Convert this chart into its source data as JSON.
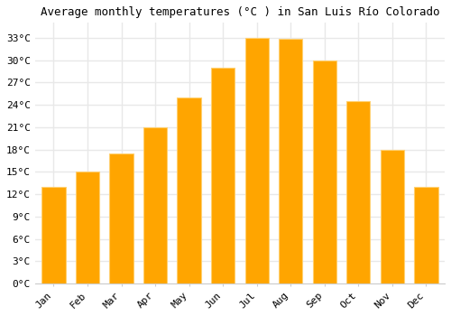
{
  "title": "Average monthly temperatures (°C ) in San Luis Río Colorado",
  "months": [
    "Jan",
    "Feb",
    "Mar",
    "Apr",
    "May",
    "Jun",
    "Jul",
    "Aug",
    "Sep",
    "Oct",
    "Nov",
    "Dec"
  ],
  "values": [
    13,
    15,
    17.5,
    21,
    25,
    29,
    33,
    32.8,
    30,
    24.5,
    18,
    13
  ],
  "bar_color": "#FFA500",
  "bar_edge_color": "#FFD070",
  "ylim": [
    0,
    35
  ],
  "yticks": [
    0,
    3,
    6,
    9,
    12,
    15,
    18,
    21,
    24,
    27,
    30,
    33
  ],
  "ytick_labels": [
    "0°C",
    "3°C",
    "6°C",
    "9°C",
    "12°C",
    "15°C",
    "18°C",
    "21°C",
    "24°C",
    "27°C",
    "30°C",
    "33°C"
  ],
  "background_color": "#ffffff",
  "grid_color": "#e8e8e8",
  "title_fontsize": 9,
  "tick_fontsize": 8,
  "font_family": "monospace"
}
